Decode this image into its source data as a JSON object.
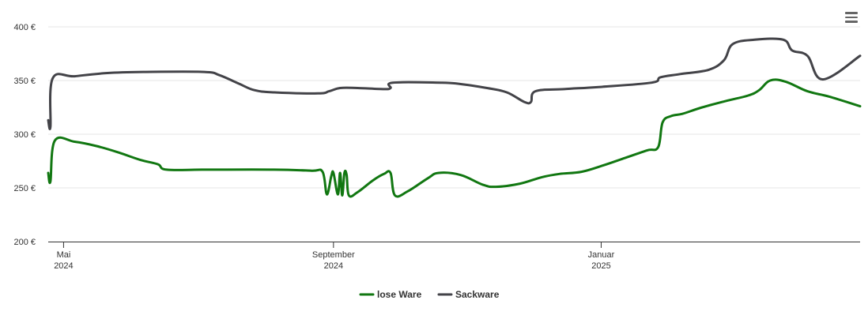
{
  "chart_data": {
    "type": "line",
    "title": "",
    "xlabel": "",
    "ylabel": "",
    "ylim": [
      200,
      400
    ],
    "y_ticks": [
      "200 €",
      "250 €",
      "300 €",
      "350 €",
      "400 €"
    ],
    "x_ticks": [
      {
        "date": "2024-05-01",
        "label": [
          "Mai",
          "2024"
        ]
      },
      {
        "date": "2024-09-01",
        "label": [
          "September",
          "2024"
        ]
      },
      {
        "date": "2025-01-01",
        "label": [
          "Januar",
          "2025"
        ]
      }
    ],
    "x_range": [
      "2024-04-24",
      "2025-04-29"
    ],
    "grid": true,
    "legend": "bottom",
    "series": [
      {
        "name": "lose Ware",
        "color": "#117711",
        "points": [
          [
            "2024-04-24",
            264
          ],
          [
            "2024-04-25",
            256
          ],
          [
            "2024-04-27",
            294
          ],
          [
            "2024-05-06",
            293
          ],
          [
            "2024-05-16",
            289
          ],
          [
            "2024-05-26",
            283
          ],
          [
            "2024-06-05",
            276
          ],
          [
            "2024-06-13",
            272
          ],
          [
            "2024-06-17",
            267
          ],
          [
            "2024-07-05",
            267
          ],
          [
            "2024-08-05",
            267
          ],
          [
            "2024-08-22",
            266
          ],
          [
            "2024-08-27",
            265
          ],
          [
            "2024-08-29",
            244
          ],
          [
            "2024-08-31",
            261
          ],
          [
            "2024-09-01",
            264
          ],
          [
            "2024-09-03",
            244
          ],
          [
            "2024-09-04",
            264
          ],
          [
            "2024-09-05",
            243
          ],
          [
            "2024-09-06",
            264
          ],
          [
            "2024-09-07",
            262
          ],
          [
            "2024-09-08",
            243
          ],
          [
            "2024-09-12",
            246
          ],
          [
            "2024-09-19",
            257
          ],
          [
            "2024-09-24",
            263
          ],
          [
            "2024-09-27",
            264
          ],
          [
            "2024-09-29",
            243
          ],
          [
            "2024-10-05",
            247
          ],
          [
            "2024-10-14",
            259
          ],
          [
            "2024-10-19",
            264
          ],
          [
            "2024-10-29",
            262
          ],
          [
            "2024-11-08",
            253
          ],
          [
            "2024-11-14",
            251
          ],
          [
            "2024-11-25",
            254
          ],
          [
            "2024-12-05",
            260
          ],
          [
            "2024-12-13",
            263
          ],
          [
            "2024-12-23",
            265
          ],
          [
            "2025-01-02",
            271
          ],
          [
            "2025-01-12",
            278
          ],
          [
            "2025-01-22",
            285
          ],
          [
            "2025-01-27",
            288
          ],
          [
            "2025-01-29",
            311
          ],
          [
            "2025-02-02",
            317
          ],
          [
            "2025-02-07",
            319
          ],
          [
            "2025-02-16",
            325
          ],
          [
            "2025-02-27",
            331
          ],
          [
            "2025-03-09",
            336
          ],
          [
            "2025-03-14",
            341
          ],
          [
            "2025-03-19",
            350
          ],
          [
            "2025-03-26",
            349
          ],
          [
            "2025-04-05",
            340
          ],
          [
            "2025-04-15",
            335
          ],
          [
            "2025-04-29",
            326
          ]
        ]
      },
      {
        "name": "Sackware",
        "color": "#434348",
        "points": [
          [
            "2024-04-24",
            313
          ],
          [
            "2024-04-25",
            307
          ],
          [
            "2024-04-26",
            352
          ],
          [
            "2024-05-06",
            354
          ],
          [
            "2024-05-21",
            357
          ],
          [
            "2024-06-07",
            358
          ],
          [
            "2024-07-04",
            358
          ],
          [
            "2024-07-11",
            355
          ],
          [
            "2024-07-20",
            347
          ],
          [
            "2024-07-27",
            341
          ],
          [
            "2024-08-05",
            339
          ],
          [
            "2024-08-25",
            338
          ],
          [
            "2024-08-30",
            340
          ],
          [
            "2024-09-04",
            343
          ],
          [
            "2024-09-12",
            343
          ],
          [
            "2024-09-24",
            342
          ],
          [
            "2024-09-27",
            343
          ],
          [
            "2024-09-28",
            348
          ],
          [
            "2024-10-20",
            348
          ],
          [
            "2024-10-28",
            347
          ],
          [
            "2024-11-10",
            343
          ],
          [
            "2024-11-19",
            339
          ],
          [
            "2024-11-27",
            330
          ],
          [
            "2024-11-30",
            330
          ],
          [
            "2024-12-02",
            340
          ],
          [
            "2024-12-15",
            342
          ],
          [
            "2024-12-31",
            344
          ],
          [
            "2025-01-24",
            348
          ],
          [
            "2025-01-28",
            353
          ],
          [
            "2025-02-06",
            356
          ],
          [
            "2025-02-19",
            360
          ],
          [
            "2025-02-26",
            369
          ],
          [
            "2025-03-02",
            384
          ],
          [
            "2025-03-12",
            388
          ],
          [
            "2025-03-25",
            388
          ],
          [
            "2025-03-29",
            378
          ],
          [
            "2025-04-05",
            373
          ],
          [
            "2025-04-12",
            351
          ],
          [
            "2025-04-29",
            373
          ]
        ]
      }
    ]
  }
}
